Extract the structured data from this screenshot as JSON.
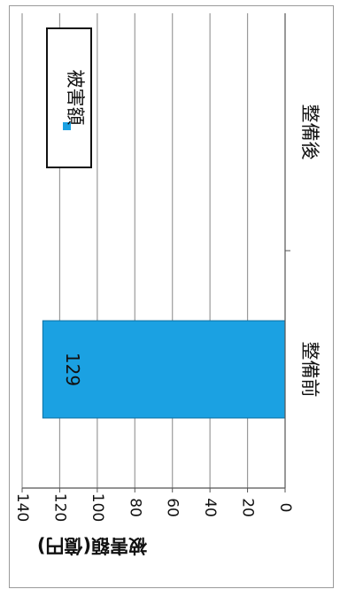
{
  "chart_data": {
    "type": "bar",
    "orientation": "rotated-90-clockwise",
    "categories": [
      "整備前",
      "整備後"
    ],
    "series": [
      {
        "name": "被害額",
        "values": [
          129,
          null
        ],
        "color": "#1ba1e2"
      }
    ],
    "ylabel": "被害額(億円)",
    "ylim": [
      0,
      140
    ],
    "yticks": [
      0,
      20,
      40,
      60,
      80,
      100,
      120,
      140
    ],
    "grid": true,
    "legend": "top-right",
    "data_labels": [
      "129"
    ]
  }
}
